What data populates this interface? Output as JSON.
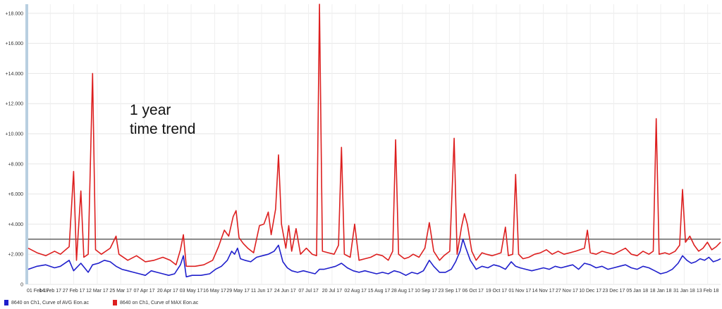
{
  "chart_data": {
    "type": "line",
    "ylim": [
      0,
      18.6
    ],
    "y_ticks": [
      "0",
      "+2.000",
      "+4.000",
      "+6.000",
      "+8.000",
      "+10.000",
      "+12.000",
      "+14.000",
      "+16.000",
      "+18.000"
    ],
    "x_ticks": [
      "01 Feb 17",
      "14 Feb 17",
      "27 Feb 17",
      "12 Mar 17",
      "25 Mar 17",
      "07 Apr 17",
      "20 Apr 17",
      "03 May 17",
      "16 May 17",
      "29 May 17",
      "11 Jun 17",
      "24 Jun 17",
      "07 Jul 17",
      "20 Jul 17",
      "02 Aug 17",
      "15 Aug 17",
      "28 Aug 17",
      "10 Sep 17",
      "23 Sep 17",
      "06 Oct 17",
      "19 Oct 17",
      "01 Nov 17",
      "14 Nov 17",
      "27 Nov 17",
      "10 Dec 17",
      "23 Dec 17",
      "05 Jan 18",
      "18 Jan 18",
      "31 Jan 18",
      "13 Feb 18"
    ],
    "grid": true,
    "reference_line": 3.0,
    "annotation": [
      "1 year",
      "time trend"
    ],
    "series": [
      {
        "name": "8640 on Ch1, Curve of MAX Eon.ac",
        "color": "#dd1f1f",
        "points": [
          [
            0,
            2.4
          ],
          [
            6,
            2.1
          ],
          [
            12,
            1.9
          ],
          [
            18,
            2.2
          ],
          [
            22,
            2.0
          ],
          [
            28,
            2.5
          ],
          [
            31,
            7.5
          ],
          [
            33,
            1.6
          ],
          [
            36,
            6.2
          ],
          [
            38,
            1.8
          ],
          [
            41,
            2.0
          ],
          [
            44,
            14.0
          ],
          [
            46,
            2.3
          ],
          [
            50,
            2.0
          ],
          [
            56,
            2.4
          ],
          [
            60,
            3.2
          ],
          [
            62,
            2.0
          ],
          [
            68,
            1.6
          ],
          [
            74,
            1.9
          ],
          [
            80,
            1.5
          ],
          [
            86,
            1.6
          ],
          [
            92,
            1.8
          ],
          [
            97,
            1.6
          ],
          [
            101,
            1.3
          ],
          [
            104,
            2.3
          ],
          [
            106,
            3.3
          ],
          [
            108,
            1.2
          ],
          [
            114,
            1.2
          ],
          [
            120,
            1.3
          ],
          [
            126,
            1.6
          ],
          [
            130,
            2.5
          ],
          [
            134,
            3.6
          ],
          [
            137,
            3.2
          ],
          [
            140,
            4.5
          ],
          [
            142,
            4.9
          ],
          [
            144,
            3.1
          ],
          [
            147,
            2.7
          ],
          [
            150,
            2.4
          ],
          [
            154,
            2.1
          ],
          [
            158,
            3.9
          ],
          [
            161,
            4.0
          ],
          [
            164,
            4.8
          ],
          [
            166,
            3.3
          ],
          [
            169,
            5.0
          ],
          [
            171,
            8.6
          ],
          [
            173,
            4.0
          ],
          [
            176,
            2.4
          ],
          [
            178,
            3.9
          ],
          [
            180,
            2.2
          ],
          [
            183,
            3.7
          ],
          [
            186,
            2.0
          ],
          [
            190,
            2.4
          ],
          [
            194,
            2.0
          ],
          [
            197,
            1.9
          ],
          [
            199,
            18.6
          ],
          [
            201,
            2.2
          ],
          [
            205,
            2.1
          ],
          [
            209,
            2.0
          ],
          [
            212,
            2.6
          ],
          [
            214,
            9.1
          ],
          [
            216,
            2.0
          ],
          [
            220,
            1.8
          ],
          [
            223,
            4.0
          ],
          [
            226,
            1.6
          ],
          [
            230,
            1.7
          ],
          [
            234,
            1.8
          ],
          [
            238,
            2.0
          ],
          [
            242,
            1.9
          ],
          [
            246,
            1.6
          ],
          [
            249,
            2.2
          ],
          [
            251,
            9.6
          ],
          [
            253,
            2.0
          ],
          [
            257,
            1.7
          ],
          [
            260,
            1.8
          ],
          [
            263,
            2.0
          ],
          [
            267,
            1.8
          ],
          [
            271,
            2.4
          ],
          [
            274,
            4.1
          ],
          [
            277,
            2.2
          ],
          [
            281,
            1.6
          ],
          [
            284,
            1.9
          ],
          [
            288,
            2.2
          ],
          [
            291,
            9.7
          ],
          [
            293,
            2.0
          ],
          [
            296,
            3.8
          ],
          [
            298,
            4.7
          ],
          [
            300,
            4.0
          ],
          [
            303,
            2.2
          ],
          [
            306,
            1.6
          ],
          [
            310,
            2.1
          ],
          [
            313,
            2.0
          ],
          [
            317,
            1.9
          ],
          [
            320,
            2.0
          ],
          [
            323,
            2.1
          ],
          [
            326,
            3.8
          ],
          [
            328,
            1.9
          ],
          [
            331,
            2.0
          ],
          [
            333,
            7.3
          ],
          [
            335,
            2.0
          ],
          [
            338,
            1.7
          ],
          [
            342,
            1.8
          ],
          [
            346,
            2.0
          ],
          [
            350,
            2.1
          ],
          [
            354,
            2.3
          ],
          [
            358,
            2.0
          ],
          [
            362,
            2.2
          ],
          [
            366,
            2.0
          ],
          [
            370,
            2.1
          ],
          [
            374,
            2.2
          ],
          [
            377,
            2.3
          ],
          [
            380,
            2.4
          ],
          [
            382,
            3.6
          ],
          [
            384,
            2.1
          ],
          [
            388,
            2.0
          ],
          [
            392,
            2.2
          ],
          [
            396,
            2.1
          ],
          [
            400,
            2.0
          ],
          [
            404,
            2.2
          ],
          [
            408,
            2.4
          ],
          [
            412,
            2.0
          ],
          [
            416,
            1.9
          ],
          [
            420,
            2.2
          ],
          [
            424,
            2.0
          ],
          [
            427,
            2.2
          ],
          [
            429,
            11.0
          ],
          [
            431,
            2.0
          ],
          [
            435,
            2.1
          ],
          [
            438,
            2.0
          ],
          [
            442,
            2.2
          ],
          [
            445,
            2.6
          ],
          [
            447,
            6.3
          ],
          [
            449,
            2.8
          ],
          [
            452,
            3.2
          ],
          [
            455,
            2.6
          ],
          [
            458,
            2.2
          ],
          [
            461,
            2.4
          ],
          [
            464,
            2.8
          ],
          [
            467,
            2.3
          ],
          [
            470,
            2.5
          ],
          [
            473,
            2.8
          ]
        ]
      },
      {
        "name": "8640 on Ch1, Curve of AVG Eon.ac",
        "color": "#1f1fcc",
        "points": [
          [
            0,
            1.0
          ],
          [
            6,
            1.2
          ],
          [
            12,
            1.3
          ],
          [
            18,
            1.1
          ],
          [
            22,
            1.2
          ],
          [
            28,
            1.6
          ],
          [
            31,
            0.9
          ],
          [
            36,
            1.4
          ],
          [
            41,
            0.8
          ],
          [
            44,
            1.3
          ],
          [
            48,
            1.4
          ],
          [
            52,
            1.6
          ],
          [
            56,
            1.5
          ],
          [
            60,
            1.2
          ],
          [
            64,
            1.0
          ],
          [
            68,
            0.9
          ],
          [
            72,
            0.8
          ],
          [
            76,
            0.7
          ],
          [
            80,
            0.6
          ],
          [
            84,
            0.9
          ],
          [
            88,
            0.8
          ],
          [
            92,
            0.7
          ],
          [
            96,
            0.6
          ],
          [
            100,
            0.7
          ],
          [
            104,
            1.3
          ],
          [
            106,
            1.9
          ],
          [
            108,
            0.5
          ],
          [
            112,
            0.6
          ],
          [
            118,
            0.6
          ],
          [
            124,
            0.7
          ],
          [
            128,
            1.0
          ],
          [
            132,
            1.2
          ],
          [
            136,
            1.6
          ],
          [
            139,
            2.2
          ],
          [
            141,
            2.0
          ],
          [
            143,
            2.4
          ],
          [
            145,
            1.7
          ],
          [
            148,
            1.6
          ],
          [
            152,
            1.5
          ],
          [
            156,
            1.8
          ],
          [
            160,
            1.9
          ],
          [
            164,
            2.0
          ],
          [
            168,
            2.2
          ],
          [
            171,
            2.6
          ],
          [
            174,
            1.5
          ],
          [
            177,
            1.1
          ],
          [
            180,
            0.9
          ],
          [
            184,
            0.8
          ],
          [
            188,
            0.9
          ],
          [
            192,
            0.8
          ],
          [
            196,
            0.7
          ],
          [
            199,
            1.0
          ],
          [
            202,
            1.0
          ],
          [
            206,
            1.1
          ],
          [
            210,
            1.2
          ],
          [
            214,
            1.4
          ],
          [
            218,
            1.1
          ],
          [
            222,
            0.9
          ],
          [
            226,
            0.8
          ],
          [
            230,
            0.9
          ],
          [
            234,
            0.8
          ],
          [
            238,
            0.7
          ],
          [
            242,
            0.8
          ],
          [
            246,
            0.7
          ],
          [
            250,
            0.9
          ],
          [
            254,
            0.8
          ],
          [
            258,
            0.6
          ],
          [
            262,
            0.8
          ],
          [
            266,
            0.7
          ],
          [
            270,
            0.9
          ],
          [
            274,
            1.6
          ],
          [
            277,
            1.2
          ],
          [
            281,
            0.8
          ],
          [
            285,
            0.8
          ],
          [
            289,
            1.0
          ],
          [
            292,
            1.5
          ],
          [
            295,
            2.2
          ],
          [
            297,
            3.0
          ],
          [
            299,
            2.4
          ],
          [
            302,
            1.6
          ],
          [
            306,
            1.0
          ],
          [
            310,
            1.2
          ],
          [
            314,
            1.1
          ],
          [
            318,
            1.3
          ],
          [
            322,
            1.2
          ],
          [
            326,
            1.0
          ],
          [
            330,
            1.5
          ],
          [
            333,
            1.2
          ],
          [
            336,
            1.1
          ],
          [
            340,
            1.0
          ],
          [
            344,
            0.9
          ],
          [
            348,
            1.0
          ],
          [
            352,
            1.1
          ],
          [
            356,
            1.0
          ],
          [
            360,
            1.2
          ],
          [
            364,
            1.1
          ],
          [
            368,
            1.2
          ],
          [
            372,
            1.3
          ],
          [
            376,
            1.0
          ],
          [
            380,
            1.4
          ],
          [
            384,
            1.3
          ],
          [
            388,
            1.1
          ],
          [
            392,
            1.2
          ],
          [
            396,
            1.0
          ],
          [
            400,
            1.1
          ],
          [
            404,
            1.2
          ],
          [
            408,
            1.3
          ],
          [
            412,
            1.1
          ],
          [
            416,
            1.0
          ],
          [
            420,
            1.2
          ],
          [
            424,
            1.1
          ],
          [
            428,
            0.9
          ],
          [
            432,
            0.7
          ],
          [
            436,
            0.8
          ],
          [
            440,
            1.0
          ],
          [
            444,
            1.4
          ],
          [
            447,
            1.9
          ],
          [
            450,
            1.6
          ],
          [
            453,
            1.4
          ],
          [
            456,
            1.5
          ],
          [
            459,
            1.7
          ],
          [
            462,
            1.6
          ],
          [
            465,
            1.8
          ],
          [
            468,
            1.5
          ],
          [
            471,
            1.6
          ],
          [
            473,
            1.7
          ]
        ]
      }
    ]
  },
  "legend": {
    "items": [
      {
        "label": "8640 on Ch1, Curve of AVG Eon.ac",
        "color": "#1f1fcc"
      },
      {
        "label": "8640 on Ch1, Curve of MAX Eon.ac",
        "color": "#dd1f1f"
      }
    ]
  }
}
